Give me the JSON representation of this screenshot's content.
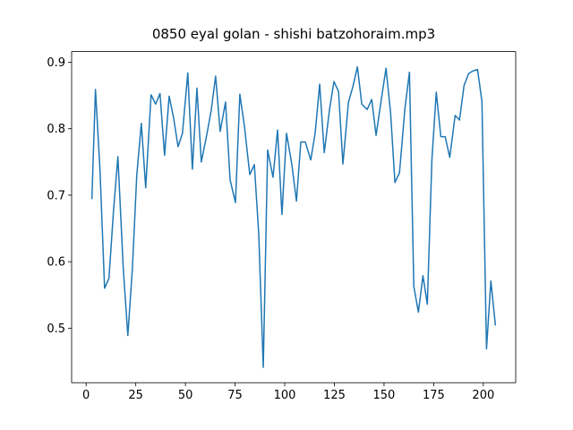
{
  "chart_data": {
    "type": "line",
    "title": "0850 eyal golan - shishi batzohoraim.mp3",
    "x": [
      2.9,
      4.7,
      7.0,
      9.3,
      11.5,
      13.8,
      16.0,
      18.7,
      21.0,
      23.3,
      25.5,
      27.8,
      30.0,
      32.7,
      35.0,
      37.2,
      39.5,
      41.8,
      44.0,
      46.3,
      48.5,
      51.2,
      53.5,
      55.8,
      58.0,
      60.7,
      63.0,
      65.2,
      67.5,
      70.2,
      72.5,
      75.2,
      77.4,
      79.7,
      82.4,
      84.7,
      86.9,
      89.2,
      91.4,
      94.1,
      96.4,
      98.6,
      100.9,
      103.6,
      105.9,
      108.1,
      110.4,
      113.1,
      115.3,
      117.6,
      119.9,
      122.6,
      124.8,
      127.1,
      129.3,
      132.1,
      134.3,
      136.6,
      138.8,
      141.5,
      143.8,
      146.0,
      148.3,
      151.0,
      153.3,
      155.5,
      157.8,
      160.5,
      162.8,
      165.0,
      167.3,
      169.6,
      171.8,
      174.1,
      176.3,
      178.6,
      180.8,
      183.1,
      185.8,
      188.0,
      190.3,
      192.6,
      194.8,
      197.1,
      199.3,
      201.6,
      203.8,
      206.1
    ],
    "series": [
      {
        "color": "#1f77b4",
        "values": [
          0.694,
          0.859,
          0.737,
          0.56,
          0.575,
          0.677,
          0.758,
          0.59,
          0.489,
          0.59,
          0.73,
          0.808,
          0.711,
          0.851,
          0.837,
          0.853,
          0.76,
          0.849,
          0.817,
          0.773,
          0.793,
          0.884,
          0.739,
          0.861,
          0.75,
          0.79,
          0.828,
          0.879,
          0.796,
          0.84,
          0.723,
          0.689,
          0.852,
          0.804,
          0.731,
          0.746,
          0.643,
          0.441,
          0.768,
          0.727,
          0.798,
          0.671,
          0.793,
          0.746,
          0.691,
          0.78,
          0.78,
          0.753,
          0.793,
          0.867,
          0.764,
          0.83,
          0.871,
          0.856,
          0.747,
          0.84,
          0.863,
          0.893,
          0.837,
          0.829,
          0.844,
          0.79,
          0.837,
          0.891,
          0.824,
          0.719,
          0.734,
          0.83,
          0.885,
          0.563,
          0.524,
          0.579,
          0.536,
          0.753,
          0.855,
          0.788,
          0.788,
          0.757,
          0.82,
          0.813,
          0.865,
          0.883,
          0.887,
          0.889,
          0.841,
          0.469,
          0.571,
          0.504
        ]
      }
    ],
    "xlim": [
      -7.3,
      216.3
    ],
    "ylim": [
      0.418,
      0.916
    ],
    "xticks": [
      0,
      25,
      50,
      75,
      100,
      125,
      150,
      175,
      200
    ],
    "yticks": [
      0.5,
      0.6,
      0.7,
      0.8,
      0.9
    ]
  }
}
